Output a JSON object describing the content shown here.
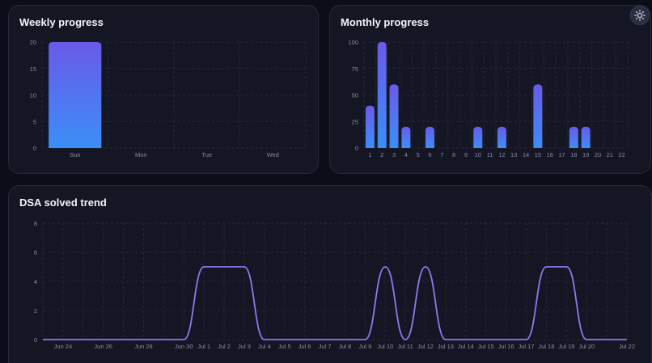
{
  "weekly": {
    "title": "Weekly progress",
    "chart_data": {
      "type": "bar",
      "categories": [
        "Sun",
        "Mon",
        "Tue",
        "Wed"
      ],
      "values": [
        20,
        0,
        0,
        0
      ],
      "ylim": [
        0,
        20
      ],
      "yticks": [
        0,
        5,
        10,
        15,
        20
      ],
      "grid": true
    }
  },
  "monthly": {
    "title": "Monthly progress",
    "chart_data": {
      "type": "bar",
      "categories": [
        "1",
        "2",
        "3",
        "4",
        "5",
        "6",
        "7",
        "8",
        "9",
        "10",
        "11",
        "12",
        "13",
        "14",
        "15",
        "16",
        "17",
        "18",
        "19",
        "20",
        "21",
        "22"
      ],
      "values": [
        40,
        100,
        60,
        20,
        0,
        20,
        0,
        0,
        0,
        20,
        0,
        20,
        0,
        0,
        60,
        0,
        0,
        20,
        20,
        0,
        0,
        0
      ],
      "ylim": [
        0,
        100
      ],
      "yticks": [
        0,
        25,
        50,
        75,
        100
      ],
      "grid": true
    }
  },
  "trend": {
    "title": "DSA solved trend",
    "chart_data": {
      "type": "line",
      "x": [
        "Jun 23",
        "Jun 24",
        "Jun 25",
        "Jun 26",
        "Jun 27",
        "Jun 28",
        "Jun 29",
        "Jun 30",
        "Jul 1",
        "Jul 2",
        "Jul 3",
        "Jul 4",
        "Jul 5",
        "Jul 6",
        "Jul 7",
        "Jul 8",
        "Jul 9",
        "Jul 10",
        "Jul 11",
        "Jul 12",
        "Jul 13",
        "Jul 14",
        "Jul 15",
        "Jul 16",
        "Jul 17",
        "Jul 18",
        "Jul 19",
        "Jul 20",
        "Jul 21",
        "Jul 22"
      ],
      "values": [
        0,
        0,
        0,
        0,
        0,
        0,
        0,
        0,
        5,
        5,
        5,
        0,
        0,
        0,
        0,
        0,
        0,
        5,
        0,
        5,
        0,
        0,
        0,
        0,
        0,
        5,
        5,
        0,
        0,
        0
      ],
      "xticks": [
        "Jun 24",
        "Jun 26",
        "Jun 28",
        "Jun 30",
        "Jul 1",
        "Jul 2",
        "Jul 3",
        "Jul 4",
        "Jul 5",
        "Jul 6",
        "Jul 7",
        "Jul 8",
        "Jul 9",
        "Jul 10",
        "Jul 11",
        "Jul 12",
        "Jul 13",
        "Jul 14",
        "Jul 15",
        "Jul 16",
        "Jul 17",
        "Jul 18",
        "Jul 19",
        "Jul 20",
        "Jul 22"
      ],
      "ylim": [
        0,
        8
      ],
      "yticks": [
        0,
        2,
        4,
        6,
        8
      ],
      "grid": true,
      "line_color": "#8b7cf0"
    }
  },
  "colors": {
    "bar_top": "#6a5ae8",
    "bar_bottom": "#3b8ef7",
    "axis_text": "#8a8da3",
    "grid": "#25283a"
  },
  "theme_toggle": {
    "icon": "sun-icon"
  }
}
